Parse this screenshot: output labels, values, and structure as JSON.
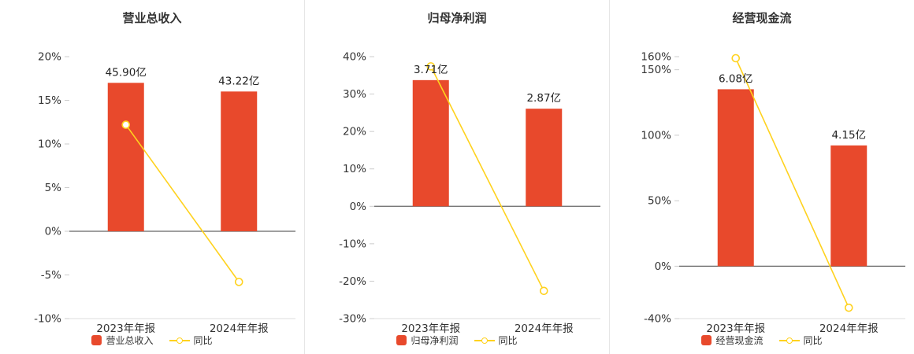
{
  "colors": {
    "bar": "#e8492c",
    "line": "#ffd21e",
    "zero_axis": "#666666",
    "axis_text": "#333333",
    "value_label_text": "#222222",
    "divider": "#e6e6e6",
    "background": "#ffffff"
  },
  "chart_data": [
    {
      "type": "bar",
      "subtype": "bar-with-line-overlay",
      "title": "营业总收入",
      "categories": [
        "2023年年报",
        "2024年年报"
      ],
      "bar_series": {
        "name": "营业总收入",
        "unit": "亿",
        "values": [
          45.9,
          43.22
        ],
        "labels": [
          "45.90亿",
          "43.22亿"
        ]
      },
      "line_series": {
        "name": "同比",
        "values_pct": [
          12.2,
          -5.8
        ]
      },
      "y_axis": {
        "min": -10,
        "max": 20,
        "ticks": [
          20,
          15,
          10,
          5,
          0,
          -5,
          -10
        ],
        "tick_labels": [
          "20%",
          "15%",
          "10%",
          "5%",
          "0%",
          "-5%",
          "-10%"
        ]
      },
      "bar_axis_max": 54,
      "grid": false,
      "legend_position": "bottom"
    },
    {
      "type": "bar",
      "subtype": "bar-with-line-overlay",
      "title": "归母净利润",
      "categories": [
        "2023年年报",
        "2024年年报"
      ],
      "bar_series": {
        "name": "归母净利润",
        "unit": "亿",
        "values": [
          3.71,
          2.87
        ],
        "labels": [
          "3.71亿",
          "2.87亿"
        ]
      },
      "line_series": {
        "name": "同比",
        "values_pct": [
          37.4,
          -22.6
        ]
      },
      "y_axis": {
        "min": -30,
        "max": 40,
        "ticks": [
          40,
          30,
          20,
          10,
          0,
          -10,
          -20,
          -30
        ],
        "tick_labels": [
          "40%",
          "30%",
          "20%",
          "10%",
          "0%",
          "-10%",
          "-20%",
          "-30%"
        ]
      },
      "bar_axis_max": 4.4,
      "grid": false,
      "legend_position": "bottom"
    },
    {
      "type": "bar",
      "subtype": "bar-with-line-overlay",
      "title": "经营现金流",
      "categories": [
        "2023年年报",
        "2024年年报"
      ],
      "bar_series": {
        "name": "经营现金流",
        "unit": "亿",
        "values": [
          6.08,
          4.15
        ],
        "labels": [
          "6.08亿",
          "4.15亿"
        ]
      },
      "line_series": {
        "name": "同比",
        "values_pct": [
          158.8,
          -31.7
        ]
      },
      "y_axis": {
        "min": -40,
        "max": 160,
        "ticks": [
          160,
          150,
          100,
          50,
          0,
          -40
        ],
        "tick_labels": [
          "160%",
          "150%",
          "100%",
          "50%",
          "0%",
          "-40%"
        ]
      },
      "bar_axis_max": 7.2,
      "grid": false,
      "legend_position": "bottom"
    }
  ]
}
